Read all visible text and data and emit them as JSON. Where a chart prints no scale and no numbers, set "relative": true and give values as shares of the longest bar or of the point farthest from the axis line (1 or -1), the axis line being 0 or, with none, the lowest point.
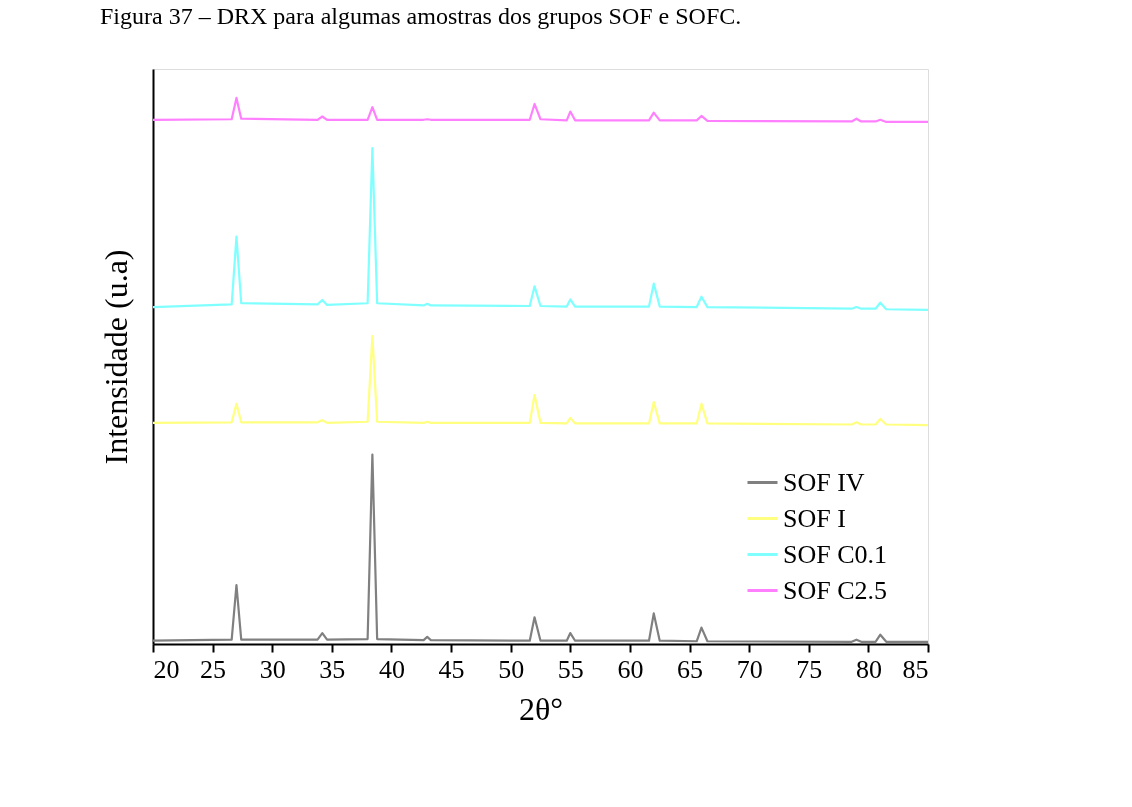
{
  "chart_data": {
    "type": "line",
    "title": "Figura 37 – DRX para algumas amostras dos grupos SOF e SOFC.",
    "xlabel": "2θ°",
    "ylabel": "Intensidade (u.a)",
    "relative": true,
    "x": [
      20,
      26.6,
      27,
      27.4,
      33.8,
      34.2,
      34.6,
      38.0,
      38.4,
      38.8,
      42.7,
      43,
      43.3,
      51.6,
      52,
      52.5,
      54.7,
      55,
      55.4,
      61.6,
      62,
      62.5,
      65.6,
      66,
      66.5,
      78.6,
      79,
      79.4,
      80.6,
      81,
      81.5,
      85
    ],
    "series": [
      {
        "name": "SOF IV",
        "color": "#808080",
        "values": [
          0.006,
          0.008,
          0.108,
          0.008,
          0.008,
          0.02,
          0.008,
          0.009,
          0.347,
          0.009,
          0.007,
          0.013,
          0.007,
          0.006,
          0.049,
          0.006,
          0.006,
          0.02,
          0.006,
          0.006,
          0.056,
          0.006,
          0.005,
          0.03,
          0.005,
          0.004,
          0.008,
          0.004,
          0.004,
          0.017,
          0.004,
          0.004
        ]
      },
      {
        "name": "SOF I",
        "color": "#ffff80",
        "values": [
          0.405,
          0.406,
          0.44,
          0.406,
          0.406,
          0.41,
          0.405,
          0.407,
          0.564,
          0.407,
          0.405,
          0.407,
          0.405,
          0.405,
          0.456,
          0.405,
          0.404,
          0.414,
          0.404,
          0.404,
          0.443,
          0.404,
          0.404,
          0.44,
          0.404,
          0.402,
          0.406,
          0.402,
          0.402,
          0.412,
          0.402,
          0.401
        ]
      },
      {
        "name": "SOF C0.1",
        "color": "#80ffff",
        "values": [
          0.617,
          0.622,
          0.746,
          0.624,
          0.622,
          0.63,
          0.621,
          0.624,
          0.908,
          0.624,
          0.62,
          0.623,
          0.62,
          0.619,
          0.655,
          0.619,
          0.618,
          0.631,
          0.618,
          0.618,
          0.66,
          0.618,
          0.617,
          0.636,
          0.617,
          0.614,
          0.617,
          0.614,
          0.614,
          0.625,
          0.613,
          0.612
        ]
      },
      {
        "name": "SOF C2.5",
        "color": "#ff80ff",
        "values": [
          0.96,
          0.961,
          1.0,
          0.962,
          0.96,
          0.966,
          0.96,
          0.96,
          0.983,
          0.96,
          0.96,
          0.961,
          0.96,
          0.96,
          0.989,
          0.961,
          0.959,
          0.975,
          0.959,
          0.959,
          0.973,
          0.959,
          0.959,
          0.967,
          0.958,
          0.957,
          0.962,
          0.957,
          0.957,
          0.96,
          0.956,
          0.956
        ]
      }
    ],
    "xlim": [
      20,
      85
    ],
    "xticks": [
      20,
      25,
      30,
      35,
      40,
      45,
      50,
      55,
      60,
      65,
      70,
      75,
      80,
      85
    ],
    "legend": "bottom right",
    "grid": false
  }
}
